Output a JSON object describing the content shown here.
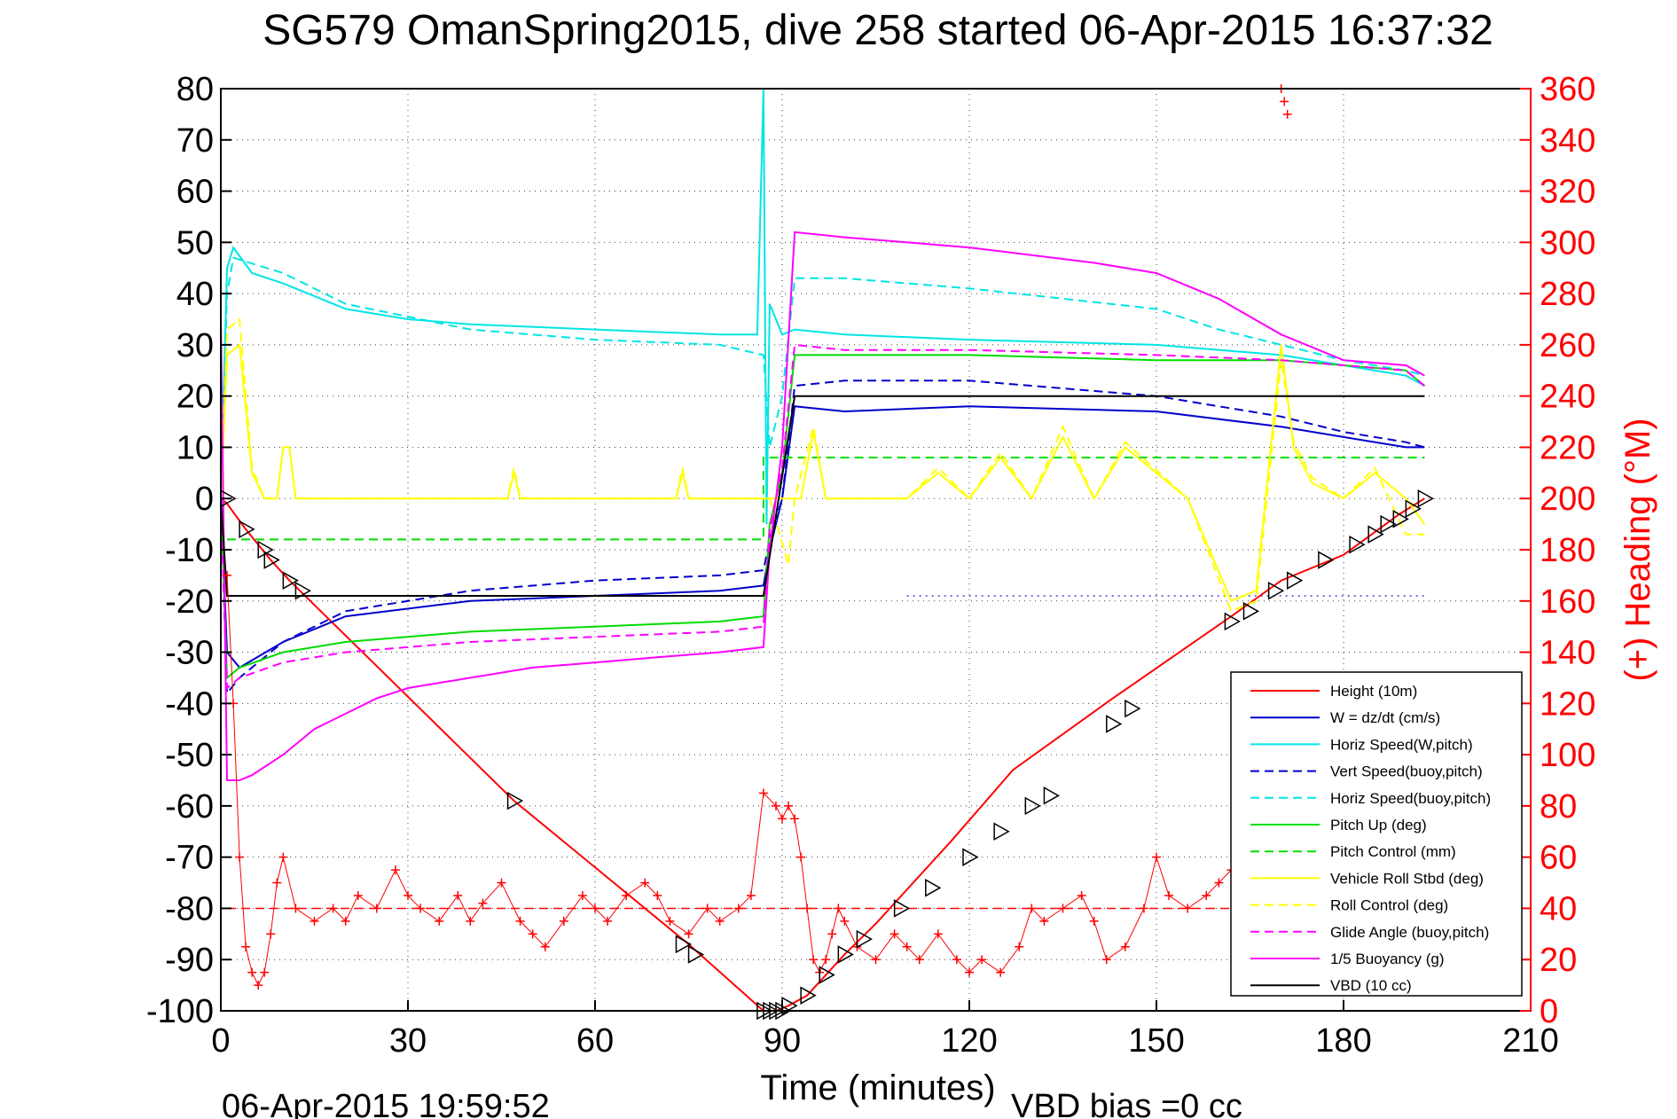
{
  "chart_data": {
    "type": "line",
    "title": "SG579 OmanSpring2015, dive 258 started 06-Apr-2015 16:37:32",
    "xlabel": "Time (minutes)",
    "ylabel_right": "(+) Heading (°M)",
    "footer_left": "06-Apr-2015 19:59:52",
    "footer_right": "VBD bias =0 cc",
    "xlim": [
      0,
      210
    ],
    "ylim": [
      -100,
      80
    ],
    "ylim_right": [
      0,
      360
    ],
    "x_ticks": [
      0,
      30,
      60,
      90,
      120,
      150,
      180,
      210
    ],
    "y_ticks": [
      80,
      70,
      60,
      50,
      40,
      30,
      20,
      10,
      0,
      -10,
      -20,
      -30,
      -40,
      -50,
      -60,
      -70,
      -80,
      -90,
      -100
    ],
    "y_ticks_right": [
      360,
      340,
      320,
      300,
      280,
      260,
      240,
      220,
      200,
      180,
      160,
      140,
      120,
      100,
      80,
      60,
      40,
      20,
      0
    ],
    "grid": true,
    "legend_position": "bottom-right",
    "series": [
      {
        "name": "Height (10m)",
        "color": "#ff0000",
        "dash": "solid",
        "x": [
          0,
          1,
          4,
          6,
          8,
          11,
          47,
          75,
          87,
          89,
          91,
          94,
          100,
          105,
          117,
          127,
          143,
          162,
          170,
          180,
          189,
          193
        ],
        "y": [
          0,
          -1,
          -6,
          -9,
          -12,
          -16,
          -59,
          -87,
          -100,
          -100,
          -99,
          -97,
          -89,
          -83,
          -67,
          -53,
          -39,
          -23,
          -16,
          -11,
          -3,
          0
        ]
      },
      {
        "name": "W = dz/dt (cm/s)",
        "color": "#0000cc",
        "dash": "solid",
        "x": [
          0,
          1,
          3,
          10,
          20,
          40,
          60,
          80,
          87,
          88,
          90,
          92,
          100,
          120,
          150,
          170,
          180,
          190,
          193
        ],
        "y": [
          0,
          -30,
          -33,
          -28,
          -23,
          -20,
          -19,
          -18,
          -17,
          -10,
          0,
          18,
          17,
          18,
          17,
          14,
          12,
          10,
          10
        ]
      },
      {
        "name": "Horiz Speed(W,pitch)",
        "color": "#00e5e5",
        "dash": "solid",
        "x": [
          0,
          1,
          2,
          5,
          10,
          20,
          30,
          40,
          60,
          80,
          86,
          87,
          87.5,
          88,
          90,
          92,
          100,
          120,
          150,
          170,
          180,
          190,
          193
        ],
        "y": [
          0,
          45,
          49,
          44,
          42,
          37,
          35,
          34,
          33,
          32,
          32,
          80,
          -5,
          38,
          32,
          33,
          32,
          31,
          30,
          28,
          26,
          24,
          22
        ]
      },
      {
        "name": "Vert Speed(buoy,pitch)",
        "color": "#0000cc",
        "dash": "dashed",
        "x": [
          0,
          1,
          3,
          10,
          20,
          40,
          60,
          80,
          87,
          88,
          90,
          92,
          100,
          120,
          150,
          170,
          180,
          190,
          193
        ],
        "y": [
          0,
          -38,
          -35,
          -28,
          -22,
          -18,
          -16,
          -15,
          -14,
          -8,
          0,
          22,
          23,
          23,
          20,
          16,
          13,
          11,
          10
        ]
      },
      {
        "name": "Horiz Speed(buoy,pitch)",
        "color": "#00e5e5",
        "dash": "dashed",
        "x": [
          0,
          1,
          2,
          10,
          20,
          40,
          60,
          80,
          87,
          88,
          90,
          92,
          100,
          120,
          150,
          160,
          170,
          180,
          190,
          193
        ],
        "y": [
          0,
          40,
          47,
          44,
          38,
          33,
          31,
          30,
          28,
          10,
          20,
          43,
          43,
          41,
          37,
          33,
          30,
          27,
          25,
          24
        ]
      },
      {
        "name": "Pitch Up (deg)",
        "color": "#00dd00",
        "dash": "solid",
        "x": [
          0,
          1,
          3,
          10,
          20,
          40,
          60,
          80,
          87,
          88,
          90,
          92,
          100,
          120,
          150,
          170,
          180,
          190,
          193
        ],
        "y": [
          0,
          -35,
          -33,
          -30,
          -28,
          -26,
          -25,
          -24,
          -23,
          -5,
          5,
          28,
          28,
          28,
          27,
          27,
          26,
          25,
          22
        ]
      },
      {
        "name": "Pitch Control (mm)",
        "color": "#00dd00",
        "dash": "dashed",
        "x": [
          1,
          87,
          87,
          92,
          193
        ],
        "y": [
          -8,
          -8,
          8,
          8,
          8
        ]
      },
      {
        "name": "Vehicle Roll Stbd (deg)",
        "color": "#ffff00",
        "dash": "solid",
        "x": [
          0,
          1,
          3,
          5,
          7,
          9,
          10,
          11,
          12,
          20,
          46,
          47,
          48,
          73,
          74,
          75,
          86,
          88,
          90,
          93,
          95,
          97,
          100,
          110,
          115,
          120,
          125,
          130,
          135,
          140,
          145,
          155,
          162,
          166,
          170,
          172,
          175,
          180,
          185,
          190,
          193
        ],
        "y": [
          0,
          28,
          30,
          5,
          0,
          0,
          10,
          10,
          0,
          0,
          0,
          5,
          0,
          0,
          5,
          0,
          0,
          0,
          0,
          0,
          13,
          0,
          0,
          0,
          5,
          0,
          8,
          0,
          12,
          0,
          10,
          0,
          -20,
          -18,
          30,
          10,
          3,
          0,
          5,
          0,
          -5
        ]
      },
      {
        "name": "Roll Control (deg)",
        "color": "#ffff00",
        "dash": "dashed",
        "x": [
          0,
          1,
          3,
          5,
          7,
          9,
          10,
          11,
          12,
          20,
          46,
          47,
          48,
          73,
          74,
          75,
          86,
          88,
          91,
          92,
          95,
          97,
          100,
          110,
          115,
          120,
          125,
          130,
          135,
          140,
          145,
          155,
          162,
          166,
          170,
          172,
          175,
          180,
          185,
          190,
          193
        ],
        "y": [
          0,
          33,
          35,
          6,
          0,
          0,
          10,
          10,
          0,
          0,
          0,
          6,
          0,
          0,
          6,
          0,
          0,
          0,
          -13,
          0,
          14,
          0,
          0,
          0,
          6,
          0,
          9,
          0,
          14,
          0,
          11,
          0,
          -22,
          -20,
          27,
          11,
          4,
          0,
          6,
          -7,
          -7
        ]
      },
      {
        "name": "Glide Angle (buoy,pitch)",
        "color": "#ff00ff",
        "dash": "dashed",
        "x": [
          0,
          1,
          3,
          10,
          20,
          40,
          60,
          80,
          87,
          88,
          90,
          92,
          100,
          120,
          150,
          170,
          180,
          190,
          193
        ],
        "y": [
          0,
          -37,
          -35,
          -32,
          -30,
          -28,
          -27,
          -26,
          -25,
          -6,
          6,
          30,
          29,
          29,
          28,
          27,
          26,
          25,
          22
        ]
      },
      {
        "name": "1/5 Buoyancy (g)",
        "color": "#ff00ff",
        "dash": "solid",
        "x": [
          0,
          1,
          2,
          3,
          5,
          10,
          15,
          20,
          25,
          30,
          40,
          50,
          60,
          70,
          80,
          87,
          88,
          90,
          92,
          100,
          120,
          140,
          150,
          160,
          170,
          180,
          190,
          193
        ],
        "y": [
          35,
          -55,
          -55,
          -55,
          -54,
          -50,
          -45,
          -42,
          -39,
          -37,
          -35,
          -33,
          -32,
          -31,
          -30,
          -29,
          -10,
          10,
          52,
          51,
          49,
          46,
          44,
          39,
          32,
          27,
          26,
          24
        ]
      },
      {
        "name": "VBD (10 cc)",
        "color": "#000000",
        "dash": "solid",
        "x": [
          0,
          1,
          87,
          87,
          92,
          193
        ],
        "y": [
          0,
          -19,
          -19,
          -19,
          20,
          20
        ]
      }
    ],
    "heading_series": {
      "axis": "right",
      "marker": "+",
      "color": "#ff0000",
      "x": [
        1,
        2,
        3,
        4,
        5,
        6,
        7,
        8,
        9,
        10,
        12,
        15,
        18,
        20,
        22,
        25,
        28,
        30,
        32,
        35,
        38,
        40,
        42,
        45,
        48,
        50,
        52,
        55,
        58,
        60,
        62,
        65,
        68,
        70,
        72,
        75,
        78,
        80,
        83,
        85,
        87,
        89,
        90,
        91,
        92,
        93,
        94,
        95,
        96,
        97,
        98,
        99,
        100,
        102,
        105,
        108,
        110,
        112,
        115,
        118,
        120,
        122,
        125,
        128,
        130,
        132,
        135,
        138,
        140,
        142,
        145,
        148,
        150,
        152,
        155,
        158,
        160,
        162,
        164,
        166
      ],
      "y": [
        170,
        120,
        60,
        25,
        15,
        10,
        15,
        30,
        50,
        60,
        40,
        35,
        40,
        35,
        45,
        40,
        55,
        45,
        40,
        35,
        45,
        35,
        42,
        50,
        35,
        30,
        25,
        35,
        45,
        40,
        35,
        45,
        50,
        45,
        35,
        30,
        40,
        35,
        40,
        45,
        85,
        80,
        75,
        80,
        75,
        60,
        40,
        20,
        15,
        20,
        30,
        40,
        35,
        25,
        20,
        30,
        25,
        20,
        30,
        20,
        15,
        20,
        15,
        25,
        40,
        35,
        40,
        45,
        35,
        20,
        25,
        40,
        60,
        45,
        40,
        45,
        50,
        55,
        65,
        75
      ]
    },
    "heading_outliers": {
      "x": [
        170,
        170.5,
        171
      ],
      "y": [
        360,
        355,
        350
      ]
    },
    "reference_lines": [
      {
        "axis": "right",
        "value": 40,
        "color": "#ff0000",
        "dash": "dashed",
        "x": [
          1,
          193
        ]
      },
      {
        "axis": "left",
        "value": -19,
        "color": "#4444cc",
        "dash": "dotted",
        "x": [
          110,
          193
        ]
      }
    ],
    "triangle_markers": {
      "x": [
        1,
        4,
        7,
        8,
        11,
        13,
        47,
        74,
        76,
        87,
        88,
        89,
        90,
        91,
        94,
        97,
        100,
        103,
        109,
        114,
        120,
        125,
        130,
        133,
        143,
        146,
        162,
        165,
        169,
        172,
        177,
        182,
        185,
        187,
        189,
        191,
        193
      ],
      "y": [
        0,
        -6,
        -10,
        -12,
        -16,
        -18,
        -59,
        -87,
        -89,
        -100,
        -100,
        -100,
        -100,
        -99,
        -97,
        -93,
        -89,
        -86,
        -80,
        -76,
        -70,
        -65,
        -60,
        -58,
        -44,
        -41,
        -24,
        -22,
        -18,
        -16,
        -12,
        -9,
        -7,
        -5,
        -4,
        -2,
        0
      ]
    }
  }
}
